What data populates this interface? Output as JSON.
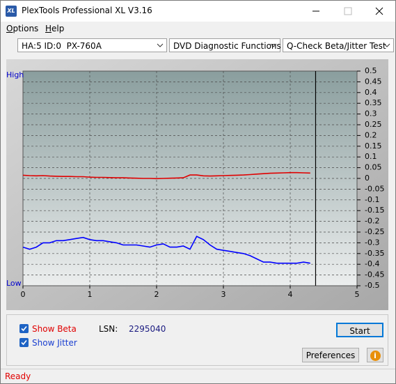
{
  "window": {
    "title": "PlexTools Professional XL V3.16",
    "icon": "XL"
  },
  "menu": [
    "Options",
    "Help"
  ],
  "toolbar": {
    "drive": "HA:5 ID:0  PX-760A",
    "function": "DVD Diagnostic Functions",
    "test": "Q-Check Beta/Jitter Test"
  },
  "chart_data": {
    "type": "line",
    "high_label": "High",
    "low_label": "Low",
    "x": [
      0,
      0.1,
      0.2,
      0.3,
      0.4,
      0.5,
      0.6,
      0.7,
      0.8,
      0.9,
      1.0,
      1.1,
      1.2,
      1.3,
      1.4,
      1.5,
      1.6,
      1.7,
      1.8,
      1.9,
      2.0,
      2.1,
      2.2,
      2.3,
      2.4,
      2.5,
      2.6,
      2.7,
      2.8,
      2.9,
      3.0,
      3.1,
      3.2,
      3.3,
      3.4,
      3.5,
      3.6,
      3.7,
      3.8,
      3.9,
      4.0,
      4.1,
      4.2,
      4.3
    ],
    "series": [
      {
        "color": "#e00000",
        "values": [
          0.015,
          0.013,
          0.012,
          0.013,
          0.011,
          0.01,
          0.009,
          0.009,
          0.008,
          0.008,
          0.006,
          0.005,
          0.005,
          0.004,
          0.003,
          0.003,
          0.002,
          0.001,
          0.0,
          0.0,
          -0.001,
          0.0,
          0.001,
          0.002,
          0.003,
          0.016,
          0.016,
          0.012,
          0.011,
          0.012,
          0.013,
          0.014,
          0.015,
          0.016,
          0.018,
          0.02,
          0.022,
          0.024,
          0.025,
          0.026,
          0.027,
          0.027,
          0.026,
          0.025
        ]
      },
      {
        "color": "#0000ff",
        "values": [
          -0.32,
          -0.33,
          -0.32,
          -0.3,
          -0.3,
          -0.29,
          -0.29,
          -0.285,
          -0.28,
          -0.275,
          -0.285,
          -0.29,
          -0.29,
          -0.295,
          -0.3,
          -0.31,
          -0.31,
          -0.31,
          -0.315,
          -0.32,
          -0.31,
          -0.305,
          -0.32,
          -0.32,
          -0.315,
          -0.33,
          -0.27,
          -0.285,
          -0.31,
          -0.33,
          -0.335,
          -0.34,
          -0.345,
          -0.35,
          -0.36,
          -0.375,
          -0.39,
          -0.39,
          -0.395,
          -0.395,
          -0.395,
          -0.395,
          -0.39,
          -0.395
        ]
      }
    ],
    "marker_x": 4.38,
    "xlim": [
      0,
      5
    ],
    "xticks": [
      0,
      1,
      2,
      3,
      4,
      5
    ],
    "ylim": [
      -0.5,
      0.5
    ],
    "yticks": [
      0.5,
      0.45,
      0.4,
      0.35,
      0.3,
      0.25,
      0.2,
      0.15,
      0.1,
      0.05,
      0,
      -0.05,
      -0.1,
      -0.15,
      -0.2,
      -0.25,
      -0.3,
      -0.35,
      -0.4,
      -0.45,
      -0.5
    ],
    "grid": true
  },
  "controls": {
    "show_beta": "Show Beta",
    "show_jitter": "Show Jitter",
    "lsn_label": "LSN:",
    "lsn_value": 2295040,
    "start": "Start",
    "preferences": "Preferences",
    "info": "i"
  },
  "status": "Ready"
}
